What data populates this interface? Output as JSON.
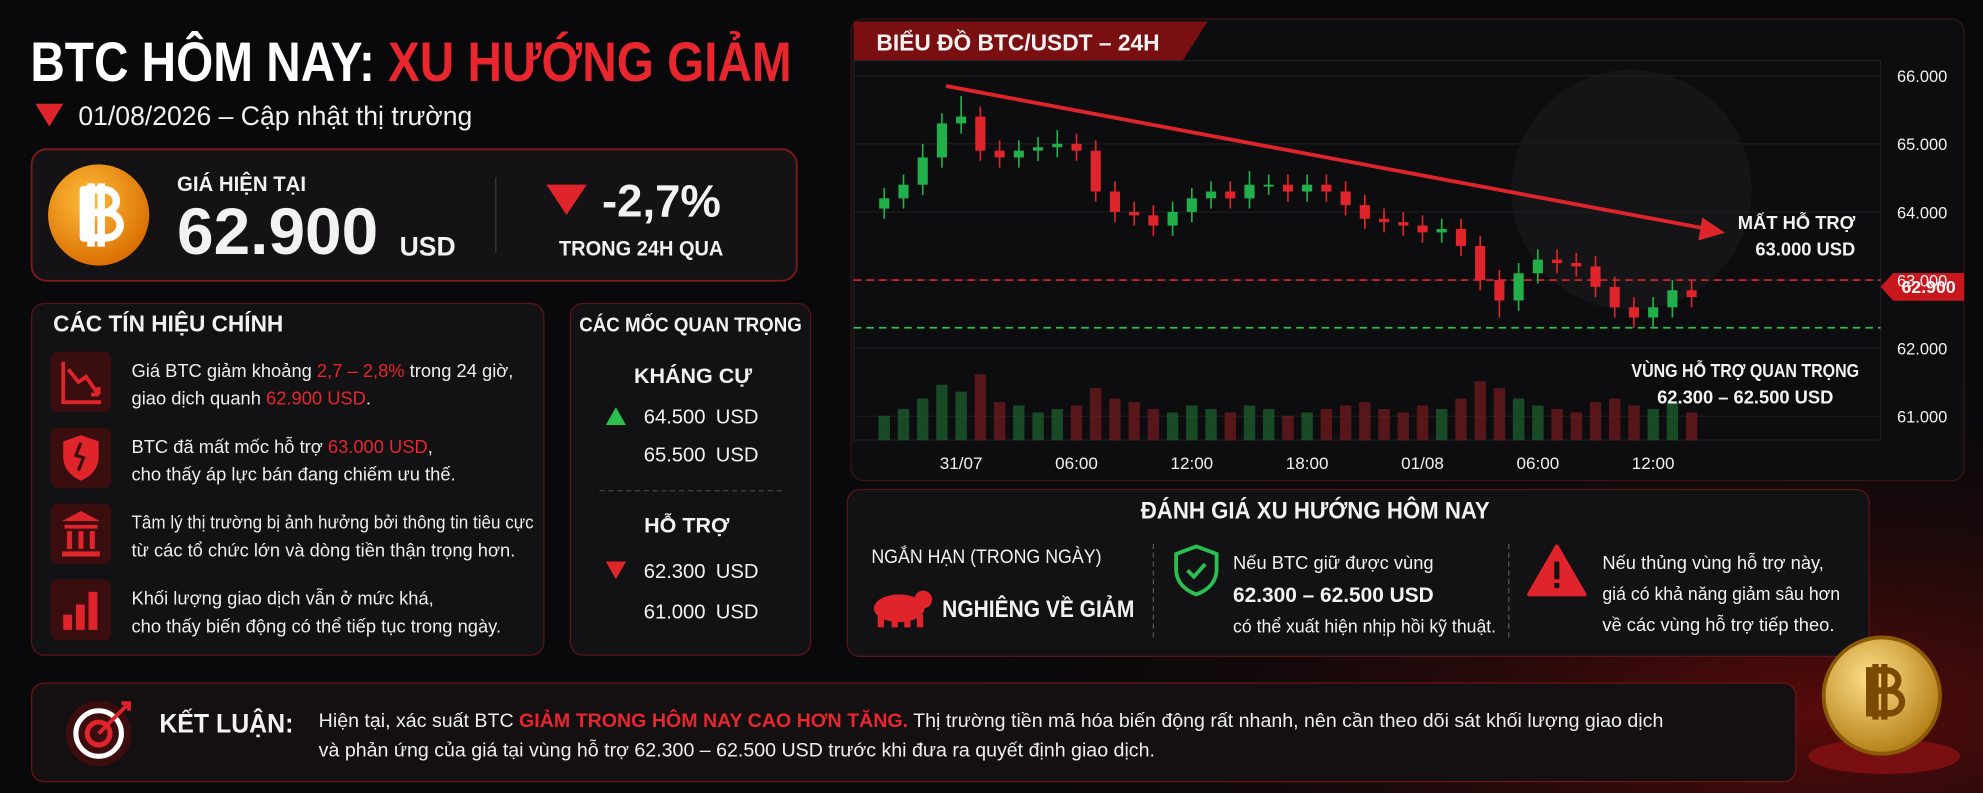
{
  "header": {
    "title_white": "BTC HÔM NAY:",
    "title_red": "XU HƯỚNG GIẢM",
    "subtitle": "01/08/2026 – Cập nhật thị trường"
  },
  "price_card": {
    "label": "GIÁ HIỆN TẠI",
    "price": "62.900",
    "unit": "USD",
    "change": "-2,7%",
    "change_label": "TRONG 24H QUA"
  },
  "signals": {
    "title": "CÁC TÍN HIỆU CHÍNH",
    "items": [
      {
        "lines": [
          [
            "Giá BTC giảm khoảng ",
            "2,7 – 2,8%",
            " trong 24 giờ,"
          ],
          [
            "giao dịch quanh ",
            "62.900 USD",
            "."
          ]
        ]
      },
      {
        "lines": [
          [
            "BTC đã mất mốc hỗ trợ ",
            "63.000 USD",
            ","
          ],
          [
            "cho thấy áp lực bán đang chiếm ưu thế."
          ]
        ]
      },
      {
        "lines": [
          [
            "Tâm lý thị trường bị ảnh hưởng bởi thông tin tiêu cực"
          ],
          [
            "từ các tổ chức lớn và dòng tiền thận trọng hơn."
          ]
        ]
      },
      {
        "lines": [
          [
            "Khối lượng giao dịch vẫn ở mức khá,"
          ],
          [
            "cho thấy biến động có thể tiếp tục trong ngày."
          ]
        ]
      }
    ]
  },
  "levels": {
    "title": "CÁC MỐC QUAN TRỌNG",
    "resistance_title": "KHÁNG CỰ",
    "resistance": [
      "64.500",
      "65.500"
    ],
    "support_title": "HỖ TRỢ",
    "support": [
      "62.300",
      "61.000"
    ],
    "unit": "USD"
  },
  "chart_data": {
    "type": "candlestick",
    "title": "BIỂU ĐỒ BTC/USDT – 24H",
    "categories": [
      null,
      null,
      null,
      null,
      "31/07",
      null,
      null,
      null,
      null,
      null,
      "06:00",
      null,
      null,
      null,
      null,
      null,
      "12:00",
      null,
      null,
      null,
      null,
      null,
      "18:00",
      null,
      null,
      null,
      null,
      null,
      "01/08",
      null,
      null,
      null,
      null,
      null,
      "06:00",
      null,
      null,
      null,
      null,
      null,
      "12:00",
      null,
      null
    ],
    "open": [
      64050,
      64200,
      64400,
      64800,
      65300,
      65400,
      64900,
      64800,
      64900,
      64950,
      65000,
      64900,
      64300,
      64000,
      63950,
      63800,
      64000,
      64200,
      64300,
      64200,
      64400,
      64400,
      64300,
      64400,
      64300,
      64100,
      63900,
      63850,
      63800,
      63700,
      63750,
      63500,
      63000,
      62700,
      63100,
      63300,
      63250,
      63200,
      62900,
      62600,
      62450,
      62600,
      62850
    ],
    "high": [
      64350,
      64550,
      65000,
      65450,
      65700,
      65550,
      65050,
      65050,
      65100,
      65200,
      65150,
      65050,
      64450,
      64150,
      64100,
      64150,
      64350,
      64450,
      64450,
      64600,
      64550,
      64550,
      64550,
      64550,
      64450,
      64250,
      64050,
      64000,
      63950,
      63900,
      63900,
      63650,
      63150,
      63250,
      63450,
      63450,
      63400,
      63350,
      63050,
      62750,
      62750,
      63000,
      63000
    ],
    "low": [
      63900,
      64050,
      64250,
      64650,
      65150,
      64750,
      64650,
      64650,
      64750,
      64800,
      64750,
      64150,
      63850,
      63800,
      63650,
      63650,
      63850,
      64050,
      64050,
      64050,
      64250,
      64150,
      64150,
      64150,
      63950,
      63750,
      63700,
      63650,
      63550,
      63550,
      63350,
      62850,
      62450,
      62550,
      62950,
      63100,
      63050,
      62750,
      62450,
      62300,
      62300,
      62450,
      62600
    ],
    "close": [
      64200,
      64400,
      64800,
      65300,
      65400,
      64900,
      64800,
      64900,
      64950,
      65000,
      64900,
      64300,
      64000,
      63950,
      63800,
      64000,
      64200,
      64300,
      64200,
      64400,
      64400,
      64300,
      64400,
      64300,
      64100,
      63900,
      63850,
      63800,
      63700,
      63750,
      63500,
      63000,
      62700,
      63100,
      63300,
      63250,
      63200,
      62900,
      62600,
      62450,
      62600,
      62850,
      62750
    ],
    "volume": [
      35,
      45,
      60,
      80,
      70,
      95,
      55,
      50,
      40,
      45,
      50,
      75,
      60,
      55,
      45,
      40,
      50,
      45,
      40,
      50,
      45,
      35,
      40,
      45,
      50,
      55,
      45,
      40,
      50,
      45,
      60,
      85,
      75,
      60,
      50,
      45,
      40,
      55,
      60,
      50,
      45,
      55,
      40
    ],
    "up_color": "#22b04b",
    "down_color": "#e0242b",
    "ylim": [
      60650,
      66220
    ],
    "yticks": [
      {
        "value": 66000,
        "label": "66.000"
      },
      {
        "value": 65000,
        "label": "65.000"
      },
      {
        "value": 64000,
        "label": "64.000"
      },
      {
        "value": 63000,
        "label": "63.000"
      },
      {
        "value": 62000,
        "label": "62.000"
      },
      {
        "value": 61000,
        "label": "61.000"
      }
    ],
    "annotations": [
      {
        "label": [
          "MẤT HỖ TRỢ",
          "63.000 USD"
        ],
        "value": 63000,
        "color": "#e0242b"
      },
      {
        "label": [
          "VÙNG HỖ TRỢ QUAN TRỌNG",
          "62.300 – 62.500 USD"
        ],
        "value": 62300,
        "color": "#2bbf50"
      }
    ],
    "current_price": {
      "value": 62900,
      "label": "62.900"
    }
  },
  "assessment": {
    "title": "ĐÁNH GIÁ XU HƯỚNG HÔM NAY",
    "short_term": "NGẮN HẠN (TRONG NGÀY)",
    "bias": "NGHIÊNG VỀ GIẢM",
    "scenario_up": [
      "Nếu BTC giữ được vùng",
      "62.300 – 62.500 USD",
      "có thể xuất hiện nhịp hồi kỹ thuật."
    ],
    "scenario_down": [
      "Nếu thủng vùng hỗ trợ này,",
      "giá có khả năng giảm sâu hơn",
      "về các vùng hỗ trợ tiếp theo."
    ]
  },
  "conclusion": {
    "label": "KẾT LUẬN:",
    "lines": [
      [
        "Hiện tại, xác suất BTC ",
        "GIẢM TRONG HÔM NAY CAO HƠN TĂNG.",
        " Thị trường tiền mã hóa biến động rất nhanh, nên cần theo dõi sát khối lượng giao dịch"
      ],
      [
        "và phản ứng của giá tại vùng hỗ trợ 62.300 – 62.500 USD trước khi đưa ra quyết định giao dịch."
      ]
    ]
  }
}
